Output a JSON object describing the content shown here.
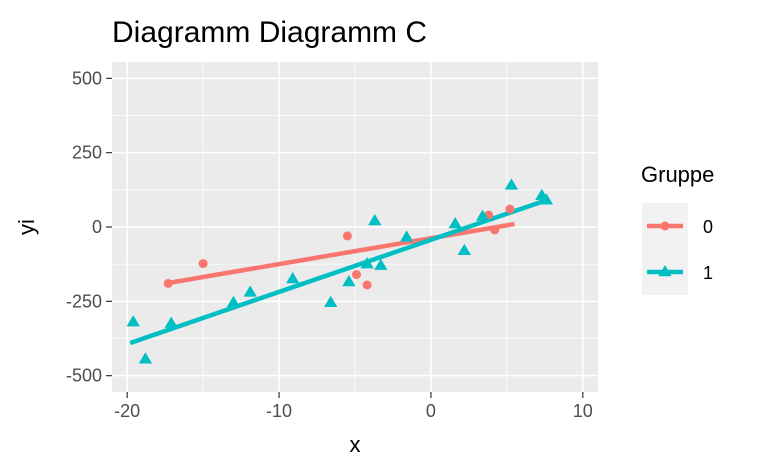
{
  "chart_data": {
    "type": "scatter",
    "title": "Diagramm Diagramm C",
    "xlabel": "x",
    "ylabel": "yi",
    "xlim": [
      -21,
      11
    ],
    "ylim": [
      -555,
      555
    ],
    "x_ticks": [
      -20,
      -10,
      0,
      10
    ],
    "x_tick_labels": [
      "-20",
      "-10",
      "0",
      "10"
    ],
    "y_ticks": [
      -500,
      -250,
      0,
      250,
      500
    ],
    "y_tick_labels": [
      "-500",
      "-250",
      "0",
      "250",
      "500"
    ],
    "grid": true,
    "legend": {
      "title": "Gruppe",
      "position": "right"
    },
    "series": [
      {
        "name": "0",
        "color": "#F8766D",
        "marker": "circle",
        "points": [
          [
            -17.3,
            -190
          ],
          [
            -15.0,
            -123
          ],
          [
            -5.5,
            -30
          ],
          [
            -4.9,
            -160
          ],
          [
            -4.2,
            -195
          ],
          [
            3.8,
            40
          ],
          [
            4.2,
            -10
          ],
          [
            5.2,
            60
          ]
        ],
        "fit": [
          [
            -17.5,
            -190
          ],
          [
            5.5,
            10
          ]
        ]
      },
      {
        "name": "1",
        "color": "#00BFC4",
        "marker": "triangle",
        "points": [
          [
            -19.6,
            -320
          ],
          [
            -18.8,
            -445
          ],
          [
            -17.1,
            -325
          ],
          [
            -13.0,
            -255
          ],
          [
            -11.9,
            -220
          ],
          [
            -9.1,
            -175
          ],
          [
            -6.6,
            -255
          ],
          [
            -5.4,
            -185
          ],
          [
            -4.2,
            -125
          ],
          [
            -3.7,
            20
          ],
          [
            -3.3,
            -130
          ],
          [
            -1.6,
            -35
          ],
          [
            1.6,
            10
          ],
          [
            2.2,
            -80
          ],
          [
            3.4,
            35
          ],
          [
            5.3,
            140
          ],
          [
            7.3,
            105
          ],
          [
            7.6,
            90
          ]
        ],
        "fit": [
          [
            -19.8,
            -390
          ],
          [
            7.6,
            90
          ]
        ]
      }
    ]
  }
}
